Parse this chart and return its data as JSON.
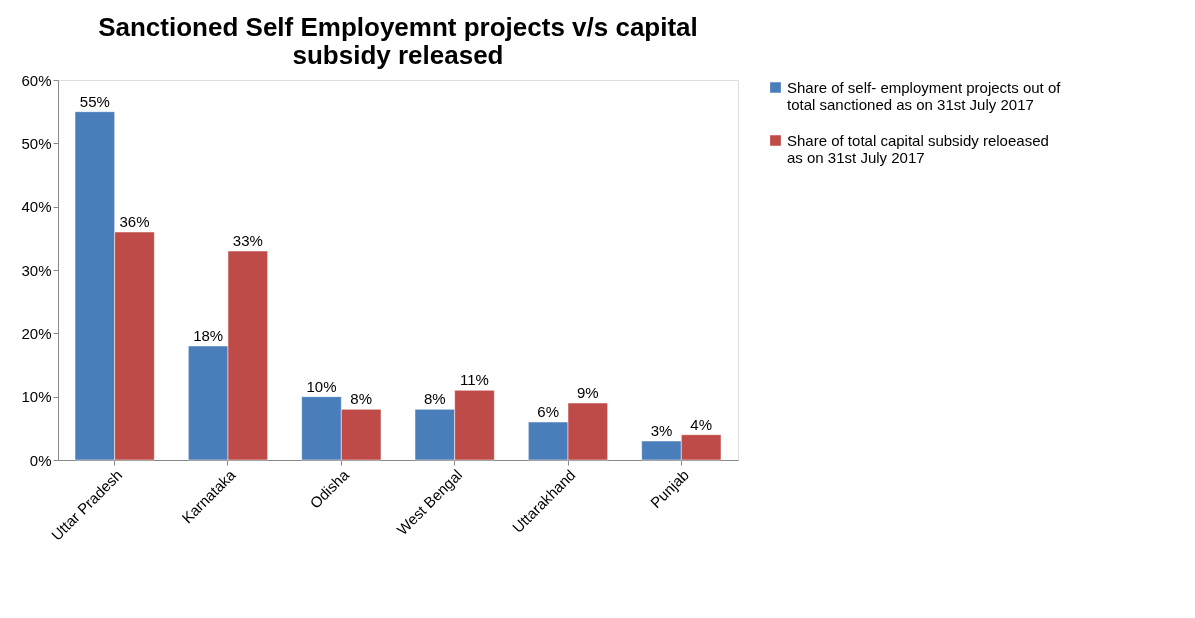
{
  "chart_data": {
    "type": "bar",
    "title": "Sanctioned Self Employemnt projects v/s capital subsidy released",
    "categories": [
      "Uttar Pradesh",
      "Karnataka",
      "Odisha",
      "West Bengal",
      "Uttarakhand",
      "Punjab"
    ],
    "series": [
      {
        "name": "Share of self- employment projects out of total sanctioned as on 31st July 2017",
        "color": "#4a7ebb",
        "values": [
          55,
          18,
          10,
          8,
          6,
          3
        ],
        "value_labels": [
          "55%",
          "18%",
          "10%",
          "8%",
          "6%",
          "3%"
        ]
      },
      {
        "name": "Share of total capital subsidy reloeased as on 31st July 2017",
        "color": "#be4b48",
        "values": [
          36,
          33,
          8,
          11,
          9,
          4
        ],
        "value_labels": [
          "36%",
          "33%",
          "8%",
          "11%",
          "9%",
          "4%"
        ]
      }
    ],
    "ylim": [
      0,
      60
    ],
    "yticks": [
      {
        "value": 0,
        "label": "0%"
      },
      {
        "value": 10,
        "label": "10%"
      },
      {
        "value": 20,
        "label": "20%"
      },
      {
        "value": 30,
        "label": "30%"
      },
      {
        "value": 40,
        "label": "40%"
      },
      {
        "value": 50,
        "label": "50%"
      },
      {
        "value": 60,
        "label": "60%"
      }
    ],
    "grid": false,
    "legend": "right"
  }
}
